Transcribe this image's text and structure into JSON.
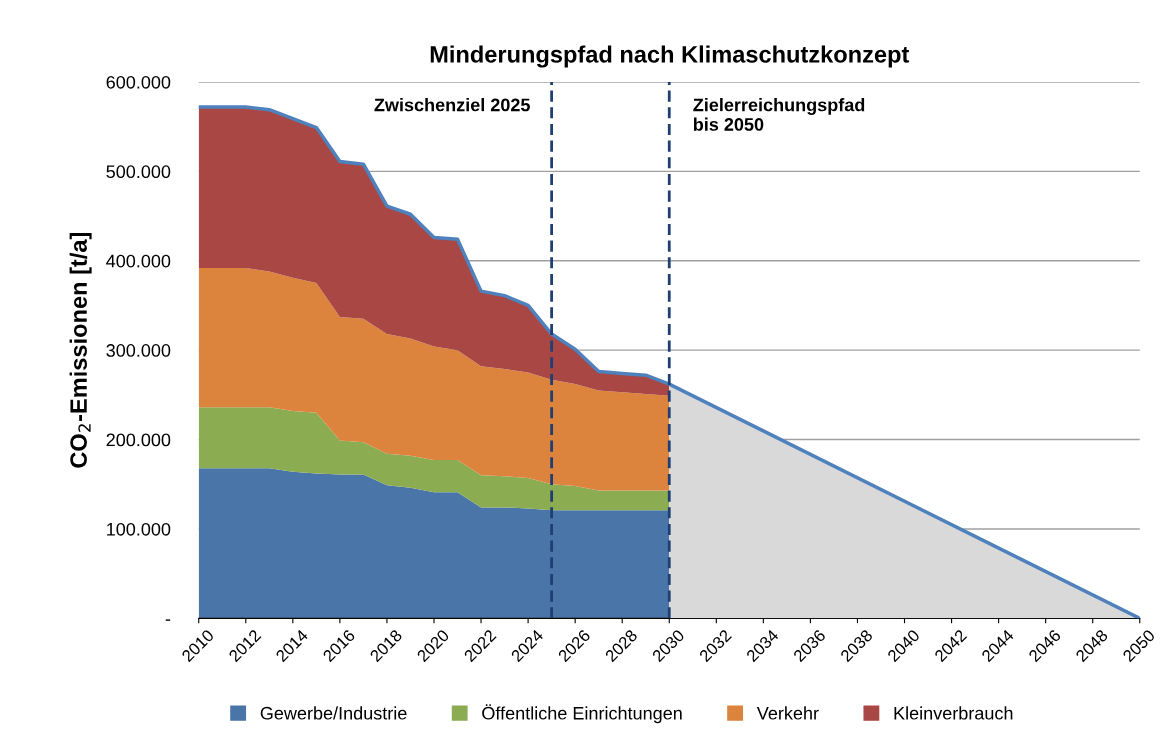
{
  "chart_data": [
    {
      "type": "area",
      "title": "Minderungspfad nach Klimaschutzkonzept",
      "ylabel": "CO$_{2}$-Emissionen [t/a]",
      "x": [
        2010,
        2011,
        2012,
        2013,
        2014,
        2015,
        2016,
        2017,
        2018,
        2019,
        2020,
        2021,
        2022,
        2023,
        2024,
        2025,
        2026,
        2027,
        2028,
        2029,
        2030
      ],
      "stacked": true,
      "series": [
        {
          "name": "Gewerbe/Industrie",
          "color": "#4a75a9",
          "values": [
            168000,
            168000,
            168000,
            168000,
            164000,
            162000,
            161000,
            161000,
            149000,
            146000,
            141000,
            141000,
            124000,
            124000,
            123000,
            121000,
            121000,
            121000,
            121000,
            121000,
            121000
          ]
        },
        {
          "name": "Öffentliche Einrichtungen",
          "color": "#8cac52",
          "values": [
            68000,
            68000,
            68000,
            68000,
            68000,
            68000,
            38000,
            36000,
            35000,
            36000,
            36000,
            36000,
            36000,
            35000,
            34000,
            29000,
            27000,
            22000,
            22000,
            22000,
            22000
          ]
        },
        {
          "name": "Verkehr",
          "color": "#dc843e",
          "values": [
            156000,
            156000,
            156000,
            152000,
            149000,
            145000,
            138000,
            138000,
            134000,
            131000,
            127000,
            123000,
            122000,
            120000,
            118000,
            117000,
            114000,
            112000,
            110000,
            108000,
            106000
          ]
        },
        {
          "name": "Kleinverbrauch",
          "color": "#a84744",
          "values": [
            180000,
            180000,
            180000,
            181000,
            178000,
            174000,
            174000,
            173000,
            143000,
            139000,
            122000,
            124000,
            84000,
            82000,
            75000,
            51000,
            39000,
            21000,
            21000,
            21000,
            13000
          ]
        }
      ],
      "xlim": [
        2010,
        2050
      ],
      "xticks": [
        2010,
        2012,
        2014,
        2016,
        2018,
        2020,
        2022,
        2024,
        2026,
        2028,
        2030,
        2032,
        2034,
        2036,
        2038,
        2040,
        2042,
        2044,
        2046,
        2048,
        2050
      ],
      "ylim": [
        0,
        600000
      ],
      "yticks": [
        {
          "value": 0,
          "label": "-"
        },
        {
          "value": 100000,
          "label": "100.000"
        },
        {
          "value": 200000,
          "label": "200.000"
        },
        {
          "value": 300000,
          "label": "300.000"
        },
        {
          "value": 400000,
          "label": "400.000"
        },
        {
          "value": 500000,
          "label": "500.000"
        },
        {
          "value": 600000,
          "label": "600.000"
        }
      ],
      "grid": "y",
      "legend": "bottom"
    },
    {
      "type": "area",
      "xlim": [
        2010,
        2050
      ],
      "ylim": [
        0,
        600000
      ],
      "series": [
        {
          "color": "#d9d9d9",
          "x": [
            2030,
            2050
          ],
          "values": [
            262000,
            0
          ]
        },
        {
          "type": "line",
          "color": "#4f81bd",
          "x": [
            2010,
            2011,
            2012,
            2013,
            2014,
            2015,
            2016,
            2017,
            2018,
            2019,
            2020,
            2021,
            2022,
            2023,
            2024,
            2025,
            2026,
            2027,
            2028,
            2029,
            2030,
            2050
          ],
          "values": [
            572000,
            572000,
            572000,
            569000,
            559000,
            549000,
            511000,
            508000,
            461000,
            452000,
            426000,
            424000,
            366000,
            361000,
            350000,
            318000,
            301000,
            276000,
            274000,
            272000,
            262000,
            0
          ]
        }
      ],
      "ref_lines": [
        {
          "axis": "x",
          "value": 2025,
          "label": "Zwischenziel 2025",
          "color": "#1f3f73",
          "line_style": "dashed"
        },
        {
          "axis": "x",
          "value": 2030,
          "label": "Zielerreichungspfad\nbis 2050",
          "color": "#1f3f73",
          "line_style": "dashed"
        }
      ]
    }
  ]
}
